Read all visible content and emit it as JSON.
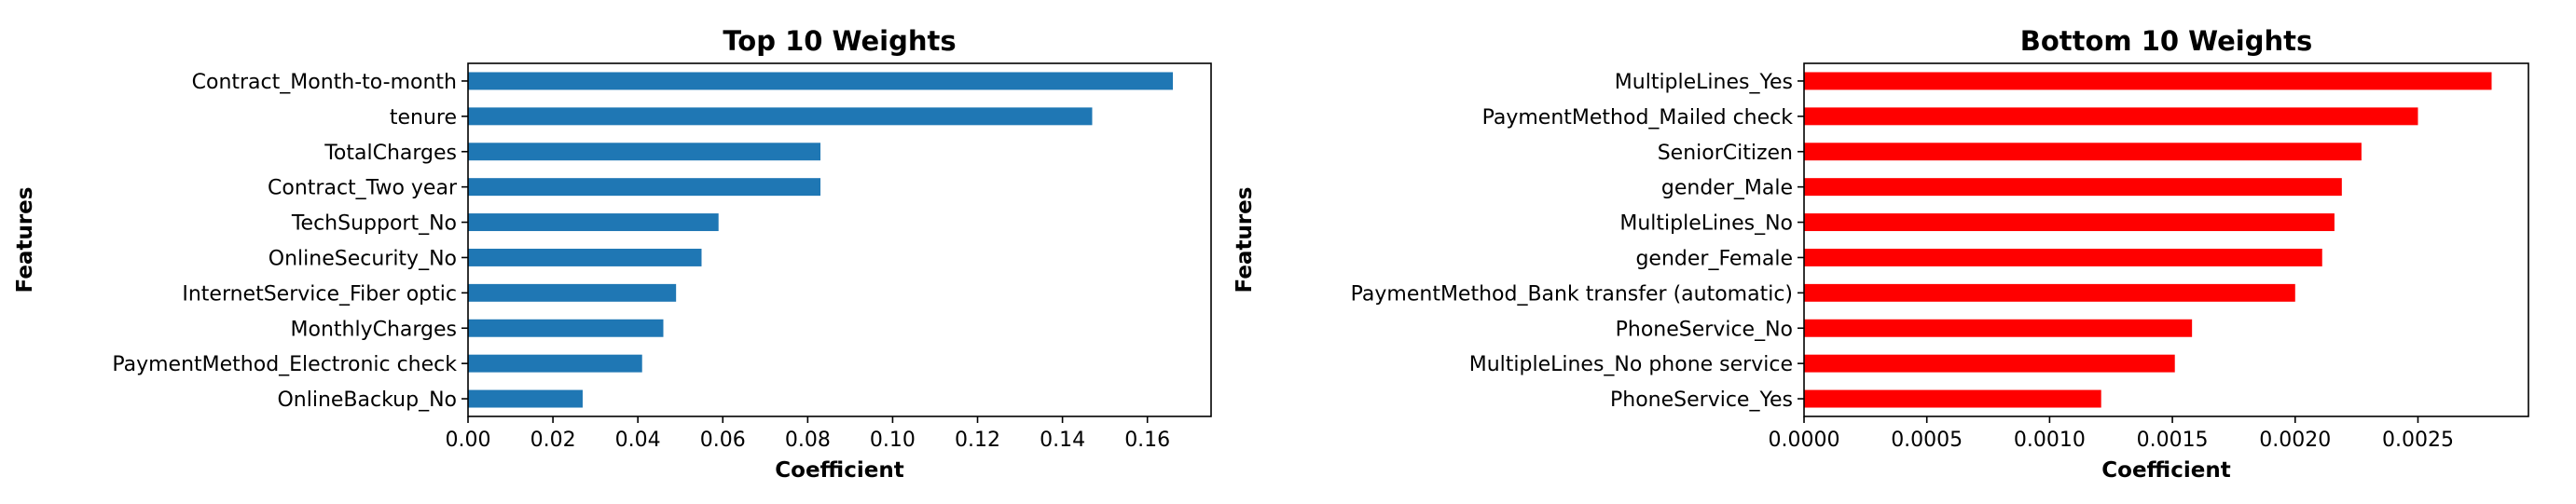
{
  "chart_data": [
    {
      "type": "bar",
      "orientation": "horizontal",
      "title": "Top 10 Weights",
      "xlabel": "Coefficient",
      "ylabel": "Features",
      "color": "#1f77b4",
      "xlim": [
        0,
        0.175
      ],
      "xticks": [
        "0.00",
        "0.02",
        "0.04",
        "0.06",
        "0.08",
        "0.10",
        "0.12",
        "0.14",
        "0.16"
      ],
      "categories": [
        "Contract_Month-to-month",
        "tenure",
        "TotalCharges",
        "Contract_Two year",
        "TechSupport_No",
        "OnlineSecurity_No",
        "InternetService_Fiber optic",
        "MonthlyCharges",
        "PaymentMethod_Electronic check",
        "OnlineBackup_No"
      ],
      "values": [
        0.166,
        0.147,
        0.083,
        0.083,
        0.059,
        0.055,
        0.049,
        0.046,
        0.041,
        0.027
      ]
    },
    {
      "type": "bar",
      "orientation": "horizontal",
      "title": "Bottom 10 Weights",
      "xlabel": "Coefficient",
      "ylabel": "Features",
      "color": "#ff0000",
      "xlim": [
        0,
        0.00295
      ],
      "xticks": [
        "0.0000",
        "0.0005",
        "0.0010",
        "0.0015",
        "0.0020",
        "0.0025"
      ],
      "categories": [
        "MultipleLines_Yes",
        "PaymentMethod_Mailed check",
        "SeniorCitizen",
        "gender_Male",
        "MultipleLines_No",
        "gender_Female",
        "PaymentMethod_Bank transfer (automatic)",
        "PhoneService_No",
        "MultipleLines_No phone service",
        "PhoneService_Yes"
      ],
      "values": [
        0.0028,
        0.0025,
        0.00227,
        0.00219,
        0.00216,
        0.00211,
        0.002,
        0.00158,
        0.00151,
        0.00121
      ]
    }
  ]
}
